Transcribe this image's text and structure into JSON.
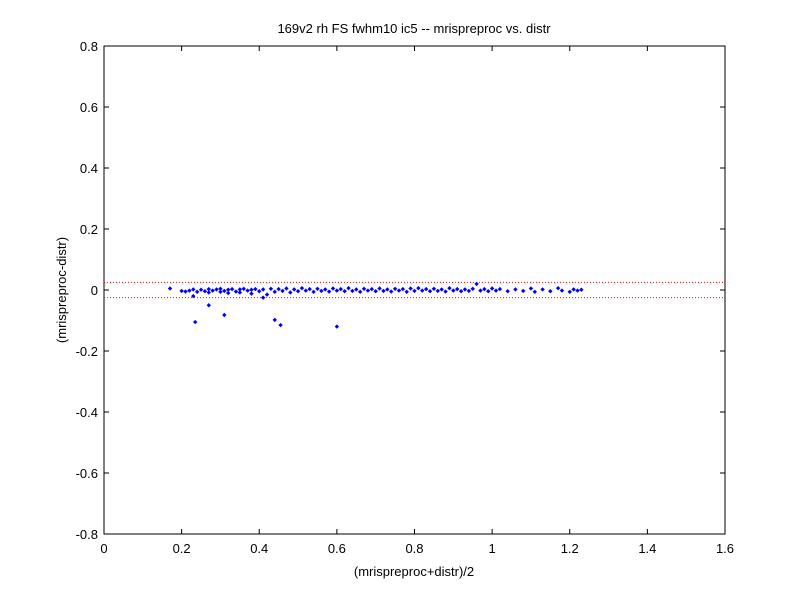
{
  "chart_data": {
    "type": "scatter",
    "title": "169v2 rh FS fwhm10 ic5 -- mrispreproc vs. distr",
    "xlabel": "(mrispreproc+distr)/2",
    "ylabel": "(mrispreproc-distr)",
    "xlim": [
      0,
      1.6
    ],
    "ylim": [
      -0.8,
      0.8
    ],
    "xticks": [
      0,
      0.2,
      0.4,
      0.6,
      0.8,
      1,
      1.2,
      1.4,
      1.6
    ],
    "xtick_labels": [
      "0",
      "0.2",
      "0.4",
      "0.6",
      "0.8",
      "1",
      "1.2",
      "1.4",
      "1.6"
    ],
    "yticks": [
      -0.8,
      -0.6,
      -0.4,
      -0.2,
      0,
      0.2,
      0.4,
      0.6,
      0.8
    ],
    "ytick_labels": [
      "-0.8",
      "-0.6",
      "-0.4",
      "-0.2",
      "0",
      "0.2",
      "0.4",
      "0.6",
      "0.8"
    ],
    "grid": false,
    "marker_color": "#0000ff",
    "reference_lines": [
      {
        "y": 0.025,
        "color": "#ff0000",
        "style": "dotted"
      },
      {
        "y": -0.025,
        "color": "#ff0000",
        "style": "dotted"
      }
    ],
    "points": [
      [
        0.17,
        0.005
      ],
      [
        0.2,
        -0.003
      ],
      [
        0.21,
        -0.005
      ],
      [
        0.22,
        -0.002
      ],
      [
        0.23,
        0.002
      ],
      [
        0.23,
        -0.02
      ],
      [
        0.24,
        -0.006
      ],
      [
        0.25,
        0.001
      ],
      [
        0.26,
        -0.004
      ],
      [
        0.27,
        0.003
      ],
      [
        0.27,
        -0.008
      ],
      [
        0.28,
        -0.002
      ],
      [
        0.29,
        0.002
      ],
      [
        0.3,
        -0.006
      ],
      [
        0.3,
        0.004
      ],
      [
        0.31,
        -0.003
      ],
      [
        0.32,
        0.001
      ],
      [
        0.32,
        -0.01
      ],
      [
        0.33,
        0.003
      ],
      [
        0.34,
        -0.005
      ],
      [
        0.35,
        0.002
      ],
      [
        0.35,
        -0.008
      ],
      [
        0.36,
        0.004
      ],
      [
        0.37,
        -0.002
      ],
      [
        0.38,
        0.001
      ],
      [
        0.38,
        -0.012
      ],
      [
        0.39,
        0.003
      ],
      [
        0.4,
        -0.004
      ],
      [
        0.41,
        0.002
      ],
      [
        0.41,
        -0.025
      ],
      [
        0.42,
        -0.015
      ],
      [
        0.43,
        0.004
      ],
      [
        0.44,
        -0.006
      ],
      [
        0.45,
        0.003
      ],
      [
        0.46,
        -0.003
      ],
      [
        0.47,
        0.005
      ],
      [
        0.48,
        -0.008
      ],
      [
        0.49,
        0.002
      ],
      [
        0.5,
        -0.004
      ],
      [
        0.51,
        0.006
      ],
      [
        0.52,
        -0.002
      ],
      [
        0.53,
        0.003
      ],
      [
        0.54,
        -0.006
      ],
      [
        0.55,
        0.004
      ],
      [
        0.56,
        -0.003
      ],
      [
        0.57,
        0.002
      ],
      [
        0.58,
        -0.005
      ],
      [
        0.59,
        0.005
      ],
      [
        0.6,
        -0.002
      ],
      [
        0.61,
        0.003
      ],
      [
        0.62,
        -0.004
      ],
      [
        0.63,
        0.006
      ],
      [
        0.64,
        -0.003
      ],
      [
        0.65,
        0.002
      ],
      [
        0.66,
        -0.006
      ],
      [
        0.67,
        0.004
      ],
      [
        0.68,
        -0.002
      ],
      [
        0.69,
        0.003
      ],
      [
        0.7,
        -0.004
      ],
      [
        0.71,
        0.005
      ],
      [
        0.72,
        -0.003
      ],
      [
        0.73,
        0.002
      ],
      [
        0.74,
        -0.005
      ],
      [
        0.75,
        0.004
      ],
      [
        0.76,
        -0.002
      ],
      [
        0.77,
        0.003
      ],
      [
        0.78,
        -0.006
      ],
      [
        0.79,
        0.005
      ],
      [
        0.8,
        -0.003
      ],
      [
        0.81,
        0.006
      ],
      [
        0.82,
        -0.002
      ],
      [
        0.83,
        0.003
      ],
      [
        0.84,
        -0.004
      ],
      [
        0.85,
        0.004
      ],
      [
        0.86,
        -0.003
      ],
      [
        0.87,
        0.002
      ],
      [
        0.88,
        -0.005
      ],
      [
        0.89,
        0.006
      ],
      [
        0.9,
        -0.002
      ],
      [
        0.91,
        0.003
      ],
      [
        0.92,
        -0.004
      ],
      [
        0.93,
        0.002
      ],
      [
        0.94,
        -0.003
      ],
      [
        0.95,
        0.004
      ],
      [
        0.96,
        0.02
      ],
      [
        0.97,
        -0.002
      ],
      [
        0.98,
        0.003
      ],
      [
        0.99,
        -0.004
      ],
      [
        1.0,
        0.005
      ],
      [
        1.01,
        -0.002
      ],
      [
        1.02,
        0.003
      ],
      [
        1.04,
        -0.004
      ],
      [
        1.06,
        0.002
      ],
      [
        1.08,
        -0.003
      ],
      [
        1.1,
        0.005
      ],
      [
        1.11,
        -0.006
      ],
      [
        1.13,
        0.002
      ],
      [
        1.15,
        -0.004
      ],
      [
        1.17,
        0.006
      ],
      [
        1.18,
        -0.002
      ],
      [
        1.2,
        -0.006
      ],
      [
        1.21,
        0.002
      ],
      [
        1.22,
        -0.002
      ],
      [
        1.23,
        0.001
      ],
      [
        0.235,
        -0.105
      ],
      [
        0.27,
        -0.05
      ],
      [
        0.31,
        -0.082
      ],
      [
        0.44,
        -0.098
      ],
      [
        0.455,
        -0.115
      ],
      [
        0.6,
        -0.12
      ]
    ]
  }
}
